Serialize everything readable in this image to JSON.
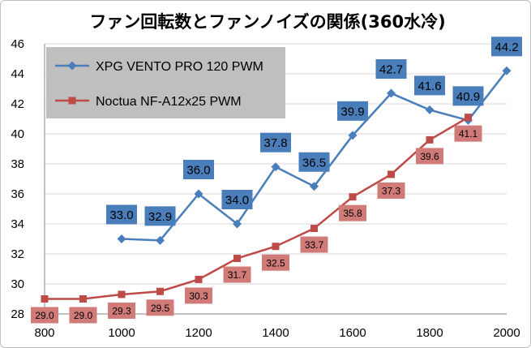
{
  "chart_data": {
    "type": "line",
    "title": "ファン回転数とファンノイズの関係(360水冷)",
    "xlabel": "",
    "ylabel": "",
    "xlim": [
      800,
      2000
    ],
    "ylim": [
      28,
      46
    ],
    "x_ticks": [
      "800",
      "1000",
      "1200",
      "1400",
      "1600",
      "1800",
      "2000"
    ],
    "y_ticks": [
      "28",
      "30",
      "32",
      "34",
      "36",
      "38",
      "40",
      "42",
      "44",
      "46"
    ],
    "grid": "horizontal",
    "legend_position": "top-left",
    "series": [
      {
        "name": "XPG VENTO PRO 120 PWM",
        "color": "#4a7ebb",
        "label_bg": "#4a7ebb",
        "marker": "diamond",
        "x": [
          1000,
          1100,
          1200,
          1300,
          1400,
          1500,
          1600,
          1700,
          1800,
          1900,
          2000
        ],
        "values": [
          33.0,
          32.9,
          36.0,
          34.0,
          37.8,
          36.5,
          39.9,
          42.7,
          41.6,
          40.9,
          44.2
        ],
        "labels": [
          "33.0",
          "32.9",
          "36.0",
          "34.0",
          "37.8",
          "36.5",
          "39.9",
          "42.7",
          "41.6",
          "40.9",
          "44.2"
        ]
      },
      {
        "name": "Noctua NF-A12x25 PWM",
        "color": "#be4b48",
        "label_bg": "#d07b78",
        "marker": "square",
        "x": [
          800,
          900,
          1000,
          1100,
          1200,
          1300,
          1400,
          1500,
          1600,
          1700,
          1800,
          1900
        ],
        "values": [
          29.0,
          29.0,
          29.3,
          29.5,
          30.3,
          31.7,
          32.5,
          33.7,
          35.8,
          37.3,
          39.6,
          41.1
        ],
        "labels": [
          "29.0",
          "29.0",
          "29.3",
          "29.5",
          "30.3",
          "31.7",
          "32.5",
          "33.7",
          "35.8",
          "37.3",
          "39.6",
          "41.1"
        ]
      }
    ]
  }
}
